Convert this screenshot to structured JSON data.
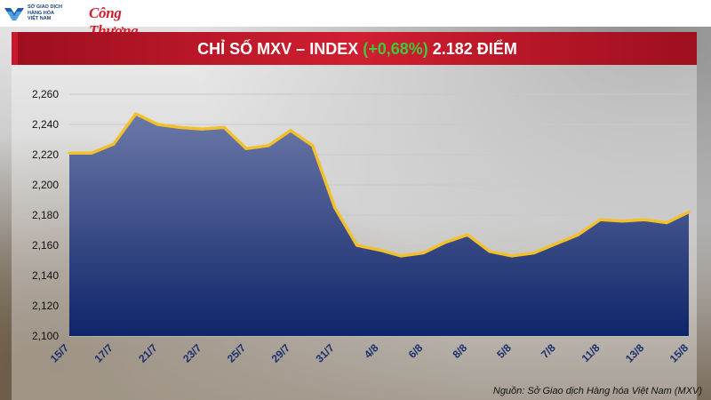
{
  "header": {
    "mxv_logo_text": [
      "SỞ GIAO DỊCH",
      "HÀNG HÓA",
      "VIỆT NAM"
    ],
    "brand_logo_text": "Công Thương"
  },
  "title": {
    "prefix": "CHỈ SỐ MXV – INDEX ",
    "change": "(+0,68%)",
    "suffix": " 2.182 ĐIỂM"
  },
  "source": "Nguồn: Sở Giao dịch Hàng hóa Việt Nam (MXV)",
  "colors": {
    "title_bg": "#c8182d",
    "change_text": "#3ec93e",
    "line": "#f2c02c",
    "area_top": "#6b78a8",
    "area_bottom": "#0f2569"
  },
  "chart_data": {
    "type": "area",
    "title": "",
    "xlabel": "",
    "ylabel": "",
    "ylim": [
      2100,
      2260
    ],
    "yticks": [
      2100,
      2120,
      2140,
      2160,
      2180,
      2200,
      2220,
      2240,
      2260
    ],
    "ytick_labels": [
      "2,100",
      "2,120",
      "2,140",
      "2,160",
      "2,180",
      "2,200",
      "2,220",
      "2,240",
      "2,260"
    ],
    "x_tick_labels": [
      "15/7",
      "17/7",
      "21/7",
      "23/7",
      "25/7",
      "29/7",
      "31/7",
      "4/8",
      "6/8",
      "8/8",
      "5/8",
      "7/8",
      "11/8",
      "13/8",
      "15/8"
    ],
    "grid": true,
    "series": [
      {
        "values": [
          2221,
          2221,
          2227,
          2247,
          2240,
          2238,
          2237,
          2238,
          2224,
          2226,
          2236,
          2226,
          2185,
          2160,
          2157,
          2153,
          2155,
          2162,
          2167,
          2156,
          2153,
          2155,
          2161,
          2167,
          2177,
          2176,
          2177,
          2175,
          2182
        ]
      }
    ]
  }
}
